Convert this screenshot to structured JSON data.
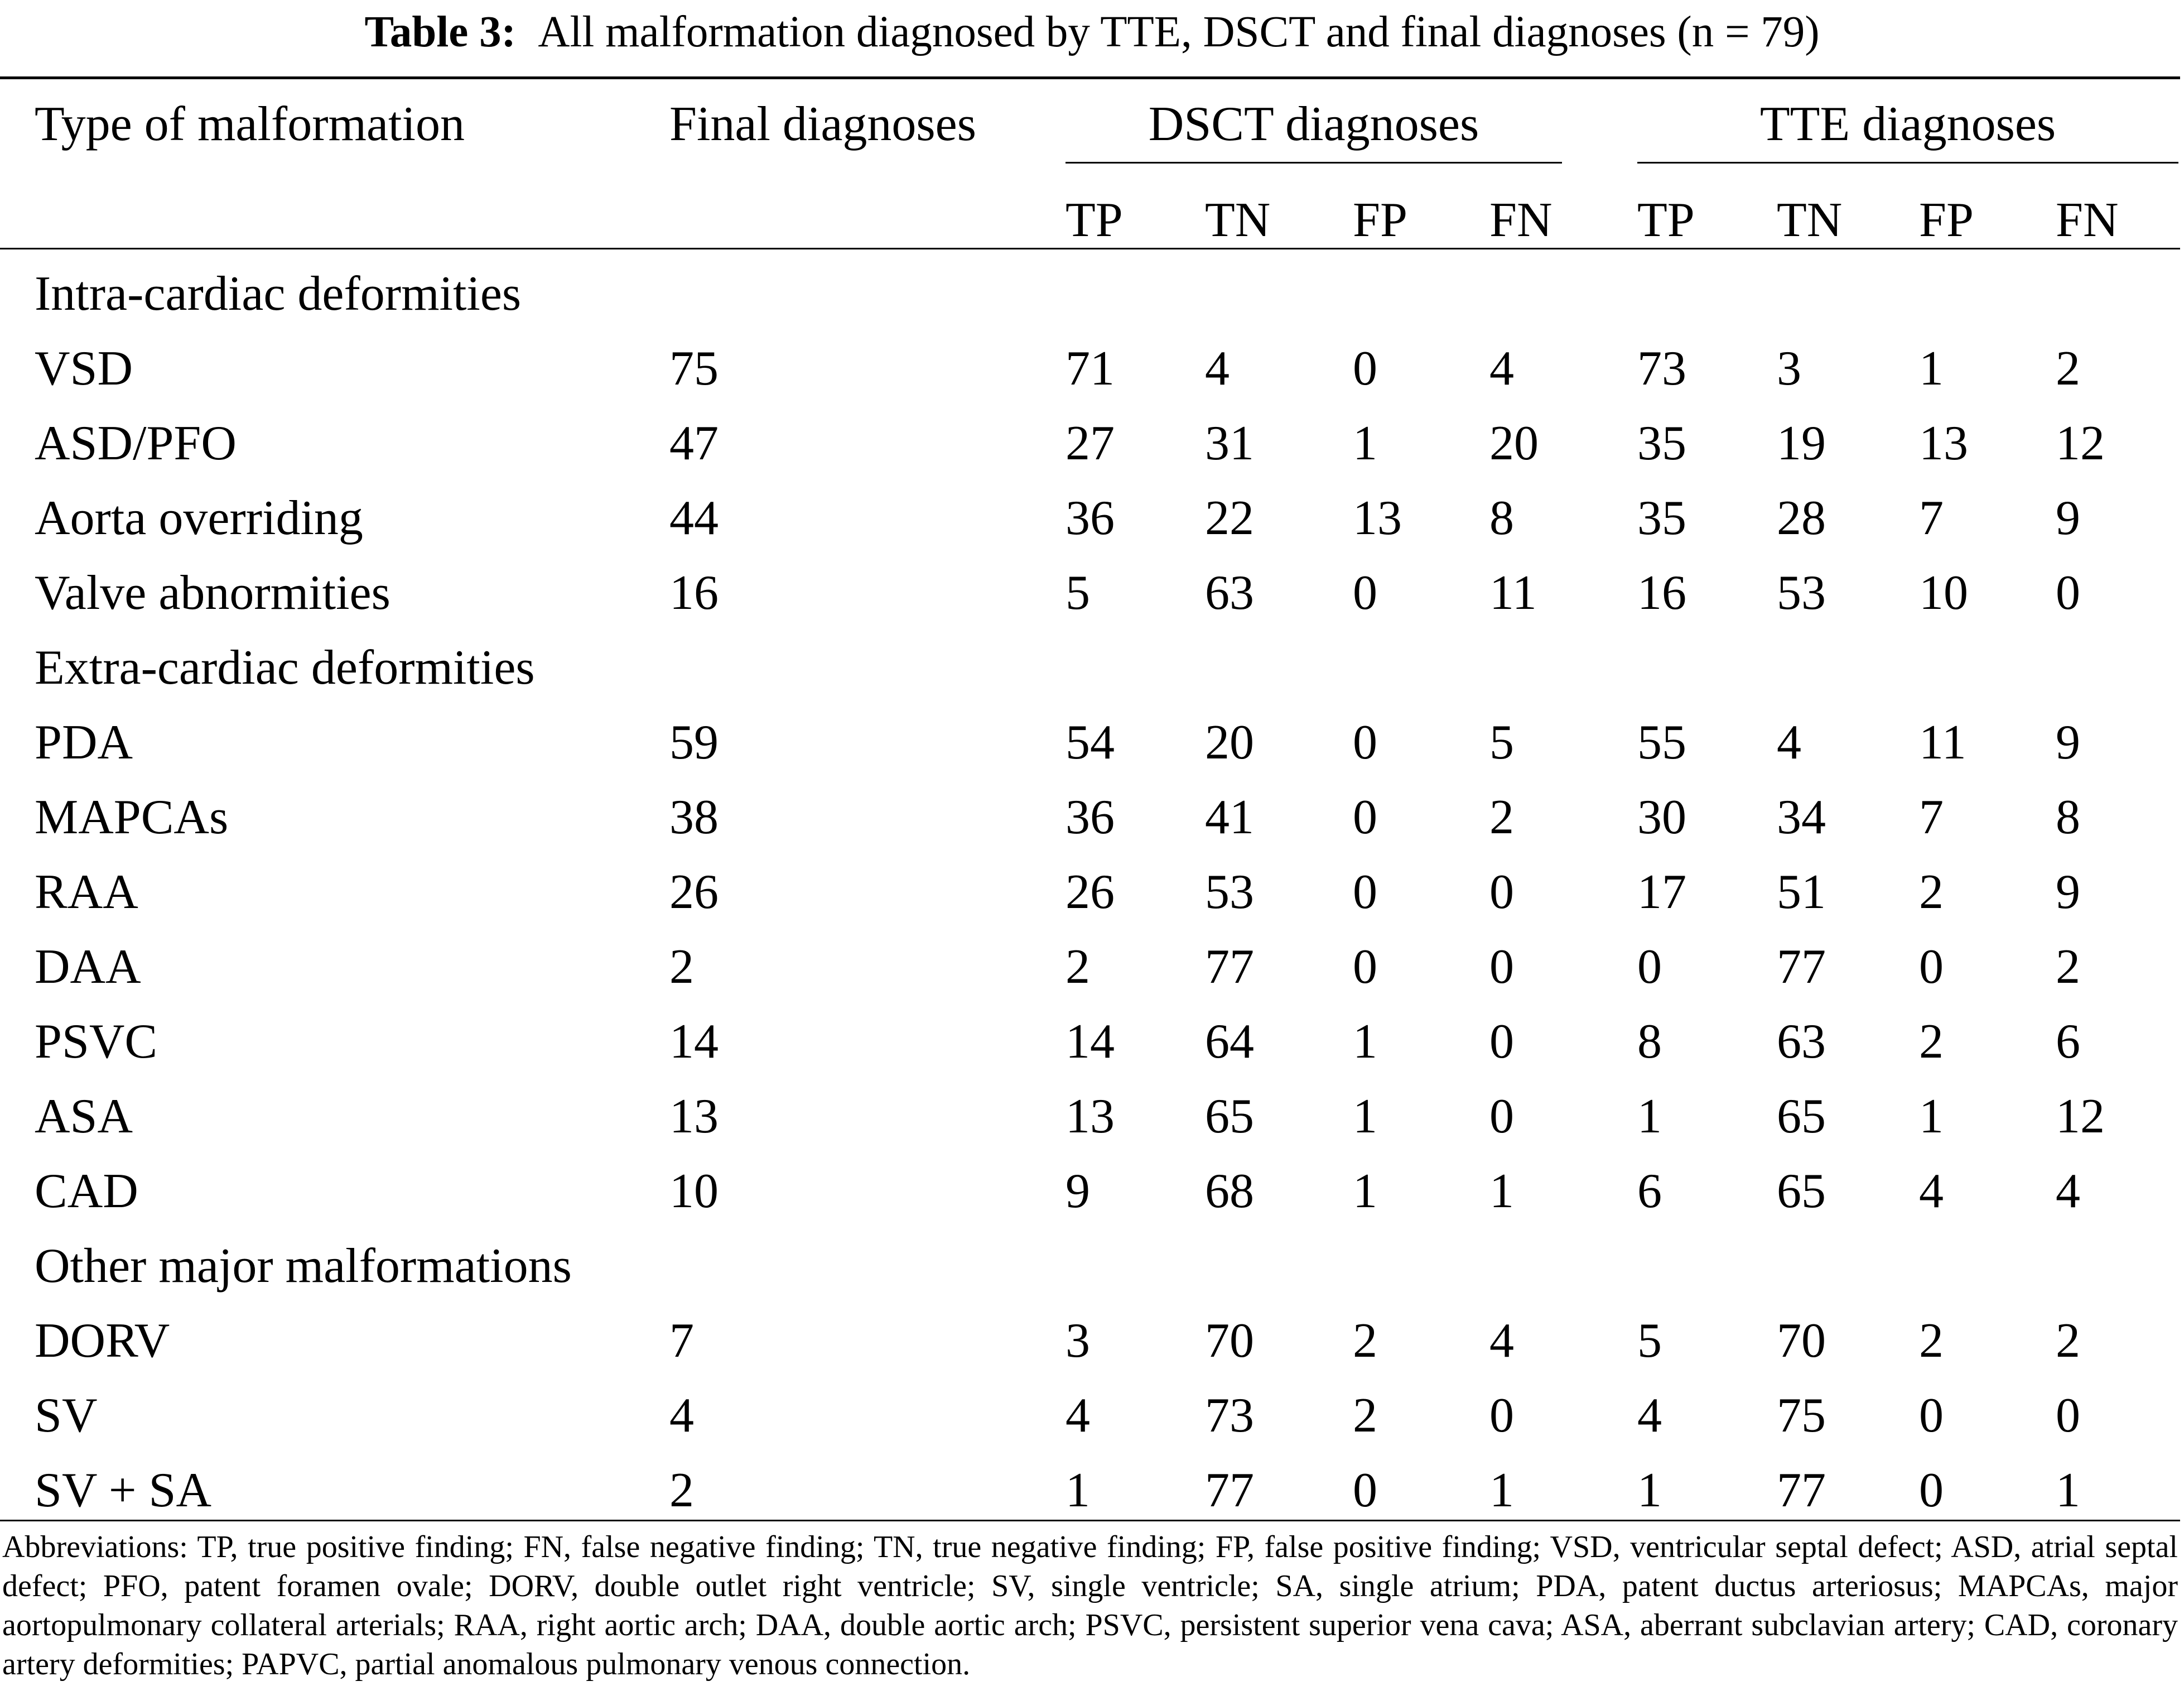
{
  "caption": {
    "label": "Table 3:",
    "text": "All malformation diagnosed by TTE, DSCT and final diagnoses (n = 79)"
  },
  "header": {
    "type_col": "Type of malformation",
    "final_col": "Final diagnoses",
    "dsct_group": "DSCT diagnoses",
    "tte_group": "TTE diagnoses",
    "sub": [
      "TP",
      "TN",
      "FP",
      "FN",
      "TP",
      "TN",
      "FP",
      "FN"
    ]
  },
  "sections": [
    {
      "title": "Intra-cardiac deformities",
      "rows": [
        {
          "name": "VSD",
          "final": "75",
          "vals": [
            "71",
            "4",
            "0",
            "4",
            "73",
            "3",
            "1",
            "2"
          ]
        },
        {
          "name": "ASD/PFO",
          "final": "47",
          "vals": [
            "27",
            "31",
            "1",
            "20",
            "35",
            "19",
            "13",
            "12"
          ]
        },
        {
          "name": "Aorta overriding",
          "final": "44",
          "vals": [
            "36",
            "22",
            "13",
            "8",
            "35",
            "28",
            "7",
            "9"
          ]
        },
        {
          "name": "Valve abnormities",
          "final": "16",
          "vals": [
            "5",
            "63",
            "0",
            "11",
            "16",
            "53",
            "10",
            "0"
          ]
        }
      ]
    },
    {
      "title": "Extra-cardiac deformities",
      "rows": [
        {
          "name": "PDA",
          "final": "59",
          "vals": [
            "54",
            "20",
            "0",
            "5",
            "55",
            "4",
            "11",
            "9"
          ]
        },
        {
          "name": "MAPCAs",
          "final": "38",
          "vals": [
            "36",
            "41",
            "0",
            "2",
            "30",
            "34",
            "7",
            "8"
          ]
        },
        {
          "name": "RAA",
          "final": "26",
          "vals": [
            "26",
            "53",
            "0",
            "0",
            "17",
            "51",
            "2",
            "9"
          ]
        },
        {
          "name": "DAA",
          "final": "2",
          "vals": [
            "2",
            "77",
            "0",
            "0",
            "0",
            "77",
            "0",
            "2"
          ]
        },
        {
          "name": "PSVC",
          "final": "14",
          "vals": [
            "14",
            "64",
            "1",
            "0",
            "8",
            "63",
            "2",
            "6"
          ]
        },
        {
          "name": "ASA",
          "final": "13",
          "vals": [
            "13",
            "65",
            "1",
            "0",
            "1",
            "65",
            "1",
            "12"
          ]
        },
        {
          "name": "CAD",
          "final": "10",
          "vals": [
            "9",
            "68",
            "1",
            "1",
            "6",
            "65",
            "4",
            "4"
          ]
        }
      ]
    },
    {
      "title": "Other major malformations",
      "rows": [
        {
          "name": "DORV",
          "final": "7",
          "vals": [
            "3",
            "70",
            "2",
            "4",
            "5",
            "70",
            "2",
            "2"
          ]
        },
        {
          "name": "SV",
          "final": "4",
          "vals": [
            "4",
            "73",
            "2",
            "0",
            "4",
            "75",
            "0",
            "0"
          ]
        },
        {
          "name": "SV + SA",
          "final": "2",
          "vals": [
            "1",
            "77",
            "0",
            "1",
            "1",
            "77",
            "0",
            "1"
          ]
        }
      ]
    }
  ],
  "abbreviations": "Abbreviations: TP, true positive finding; FN, false negative finding; TN, true negative finding; FP, false positive finding; VSD, ventricular septal defect; ASD, atrial septal defect; PFO, patent foramen ovale; DORV, double outlet right ventricle; SV, single ventricle; SA, single atrium; PDA, patent ductus arteriosus; MAPCAs, major aortopulmonary collateral arterials; RAA, right aortic arch; DAA, double aortic arch; PSVC, persistent superior vena cava; ASA, aberrant subclavian artery; CAD, coronary artery deformities; PAPVC, partial anomalous pulmonary venous connection."
}
